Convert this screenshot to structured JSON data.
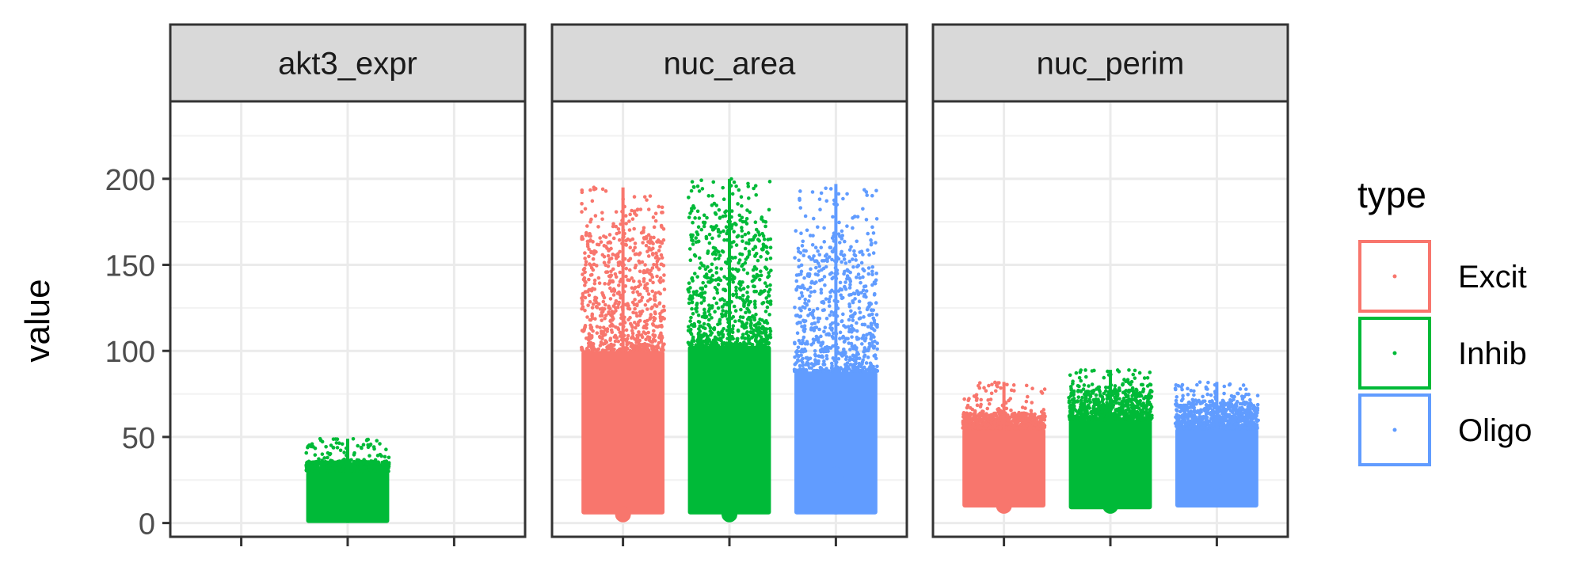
{
  "chart_data": {
    "type": "scatter",
    "subtype": "faceted jitter strip plot with median point-range",
    "ylabel": "value",
    "xlabel": "",
    "ylim": [
      -8,
      245
    ],
    "y_ticks": [
      0,
      50,
      100,
      150,
      200
    ],
    "grid": true,
    "legend": {
      "title": "type",
      "position": "right",
      "entries": [
        {
          "name": "Excit",
          "color": "#F8766D"
        },
        {
          "name": "Inhib",
          "color": "#00BA38"
        },
        {
          "name": "Oligo",
          "color": "#619CFF"
        }
      ]
    },
    "panels": [
      {
        "label": "akt3_expr",
        "groups": [
          {
            "type": "Inhib",
            "slot": 2,
            "median": 6,
            "min": 0,
            "max": 49,
            "dense_top": 30,
            "sparse_top": 36,
            "color": "#00BA38"
          }
        ]
      },
      {
        "label": "nuc_area",
        "groups": [
          {
            "type": "Excit",
            "slot": 1,
            "median": 5,
            "min": 5,
            "max": 195,
            "dense_top": 100,
            "sparse_top": 168,
            "color": "#F8766D"
          },
          {
            "type": "Inhib",
            "slot": 2,
            "median": 5,
            "min": 5,
            "max": 200,
            "dense_top": 103,
            "sparse_top": 175,
            "color": "#00BA38"
          },
          {
            "type": "Oligo",
            "slot": 3,
            "median": 28,
            "min": 5,
            "max": 197,
            "dense_top": 88,
            "sparse_top": 160,
            "color": "#619CFF"
          }
        ]
      },
      {
        "label": "nuc_perim",
        "groups": [
          {
            "type": "Excit",
            "slot": 1,
            "median": 10,
            "min": 9,
            "max": 82,
            "dense_top": 55,
            "sparse_top": 64,
            "color": "#F8766D"
          },
          {
            "type": "Inhib",
            "slot": 2,
            "median": 10,
            "min": 8,
            "max": 89,
            "dense_top": 60,
            "sparse_top": 77,
            "color": "#00BA38"
          },
          {
            "type": "Oligo",
            "slot": 3,
            "median": 24,
            "min": 9,
            "max": 82,
            "dense_top": 55,
            "sparse_top": 70,
            "color": "#619CFF"
          }
        ]
      }
    ]
  }
}
